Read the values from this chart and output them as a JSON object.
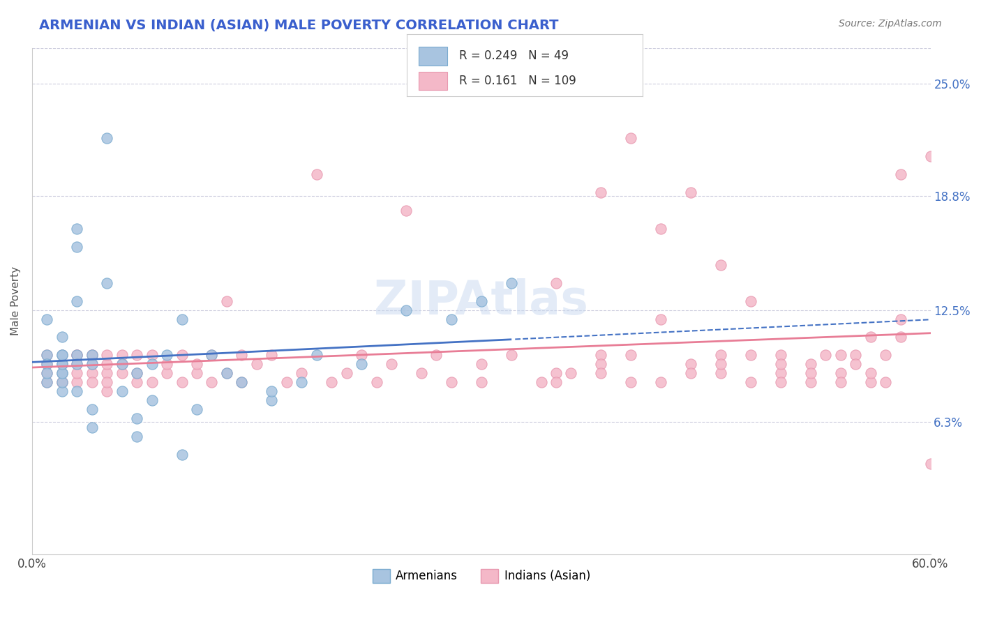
{
  "title": "ARMENIAN VS INDIAN (ASIAN) MALE POVERTY CORRELATION CHART",
  "source_text": "Source: ZipAtlas.com",
  "xlabel": "",
  "ylabel": "Male Poverty",
  "xlim": [
    0.0,
    0.6
  ],
  "ylim": [
    -0.01,
    0.27
  ],
  "xtick_labels": [
    "0.0%",
    "60.0%"
  ],
  "xtick_positions": [
    0.0,
    0.6
  ],
  "ytick_labels": [
    "25.0%",
    "18.8%",
    "12.5%",
    "6.3%"
  ],
  "ytick_positions": [
    0.25,
    0.188,
    0.125,
    0.063
  ],
  "title_color": "#3a5fcd",
  "title_fontsize": 15,
  "axis_label_color": "#555555",
  "source_color": "#777777",
  "legend_R1": "0.249",
  "legend_N1": "49",
  "legend_R2": "0.161",
  "legend_N2": "109",
  "legend_color_blue": "#a8c4e0",
  "legend_color_pink": "#f4b8c8",
  "scatter_color_blue": "#a8c4e0",
  "scatter_color_pink": "#f4b8c8",
  "scatter_edge_blue": "#7aabcf",
  "scatter_edge_pink": "#e899b0",
  "line_color_blue": "#4472c4",
  "line_color_pink": "#e87d96",
  "watermark_color": "#c8d8f0",
  "grid_color": "#ccccdd",
  "background_color": "#ffffff",
  "armenians_x": [
    0.01,
    0.01,
    0.01,
    0.01,
    0.01,
    0.02,
    0.02,
    0.02,
    0.02,
    0.02,
    0.02,
    0.02,
    0.02,
    0.02,
    0.03,
    0.03,
    0.03,
    0.03,
    0.03,
    0.03,
    0.04,
    0.04,
    0.04,
    0.04,
    0.05,
    0.05,
    0.06,
    0.06,
    0.07,
    0.07,
    0.07,
    0.08,
    0.08,
    0.09,
    0.1,
    0.1,
    0.11,
    0.12,
    0.13,
    0.14,
    0.16,
    0.16,
    0.18,
    0.19,
    0.22,
    0.25,
    0.28,
    0.3,
    0.32
  ],
  "armenians_y": [
    0.085,
    0.1,
    0.095,
    0.12,
    0.09,
    0.08,
    0.11,
    0.095,
    0.1,
    0.09,
    0.085,
    0.09,
    0.095,
    0.1,
    0.16,
    0.17,
    0.13,
    0.1,
    0.095,
    0.08,
    0.1,
    0.095,
    0.07,
    0.06,
    0.22,
    0.14,
    0.095,
    0.08,
    0.09,
    0.055,
    0.065,
    0.095,
    0.075,
    0.1,
    0.045,
    0.12,
    0.07,
    0.1,
    0.09,
    0.085,
    0.075,
    0.08,
    0.085,
    0.1,
    0.095,
    0.125,
    0.12,
    0.13,
    0.14
  ],
  "indians_x": [
    0.01,
    0.01,
    0.01,
    0.01,
    0.02,
    0.02,
    0.02,
    0.02,
    0.02,
    0.03,
    0.03,
    0.03,
    0.03,
    0.03,
    0.04,
    0.04,
    0.04,
    0.04,
    0.04,
    0.05,
    0.05,
    0.05,
    0.05,
    0.05,
    0.06,
    0.06,
    0.06,
    0.07,
    0.07,
    0.07,
    0.08,
    0.08,
    0.09,
    0.09,
    0.1,
    0.1,
    0.11,
    0.11,
    0.12,
    0.12,
    0.13,
    0.13,
    0.14,
    0.14,
    0.15,
    0.16,
    0.17,
    0.18,
    0.19,
    0.2,
    0.21,
    0.22,
    0.23,
    0.24,
    0.25,
    0.26,
    0.27,
    0.28,
    0.3,
    0.32,
    0.34,
    0.36,
    0.38,
    0.4,
    0.42,
    0.44,
    0.46,
    0.48,
    0.5,
    0.52,
    0.54,
    0.56,
    0.58,
    0.35,
    0.38,
    0.4,
    0.42,
    0.44,
    0.46,
    0.48,
    0.5,
    0.52,
    0.54,
    0.56,
    0.58,
    0.6,
    0.55,
    0.57,
    0.46,
    0.5,
    0.53,
    0.3,
    0.35,
    0.38,
    0.4,
    0.42,
    0.44,
    0.46,
    0.48,
    0.5,
    0.52,
    0.54,
    0.56,
    0.58,
    0.6,
    0.55,
    0.57,
    0.35,
    0.38
  ],
  "indians_y": [
    0.1,
    0.09,
    0.085,
    0.095,
    0.1,
    0.085,
    0.095,
    0.09,
    0.085,
    0.1,
    0.095,
    0.085,
    0.09,
    0.1,
    0.09,
    0.1,
    0.085,
    0.095,
    0.1,
    0.09,
    0.08,
    0.095,
    0.1,
    0.085,
    0.09,
    0.095,
    0.1,
    0.085,
    0.09,
    0.1,
    0.085,
    0.1,
    0.09,
    0.095,
    0.1,
    0.085,
    0.09,
    0.095,
    0.1,
    0.085,
    0.13,
    0.09,
    0.1,
    0.085,
    0.095,
    0.1,
    0.085,
    0.09,
    0.2,
    0.085,
    0.09,
    0.1,
    0.085,
    0.095,
    0.18,
    0.09,
    0.1,
    0.085,
    0.095,
    0.1,
    0.085,
    0.09,
    0.1,
    0.085,
    0.12,
    0.095,
    0.1,
    0.085,
    0.09,
    0.095,
    0.1,
    0.085,
    0.12,
    0.14,
    0.19,
    0.22,
    0.17,
    0.19,
    0.15,
    0.13,
    0.1,
    0.085,
    0.09,
    0.11,
    0.2,
    0.21,
    0.1,
    0.085,
    0.09,
    0.095,
    0.1,
    0.085,
    0.09,
    0.095,
    0.1,
    0.085,
    0.09,
    0.095,
    0.1,
    0.085,
    0.09,
    0.085,
    0.09,
    0.11,
    0.04,
    0.095,
    0.1,
    0.085,
    0.09
  ]
}
